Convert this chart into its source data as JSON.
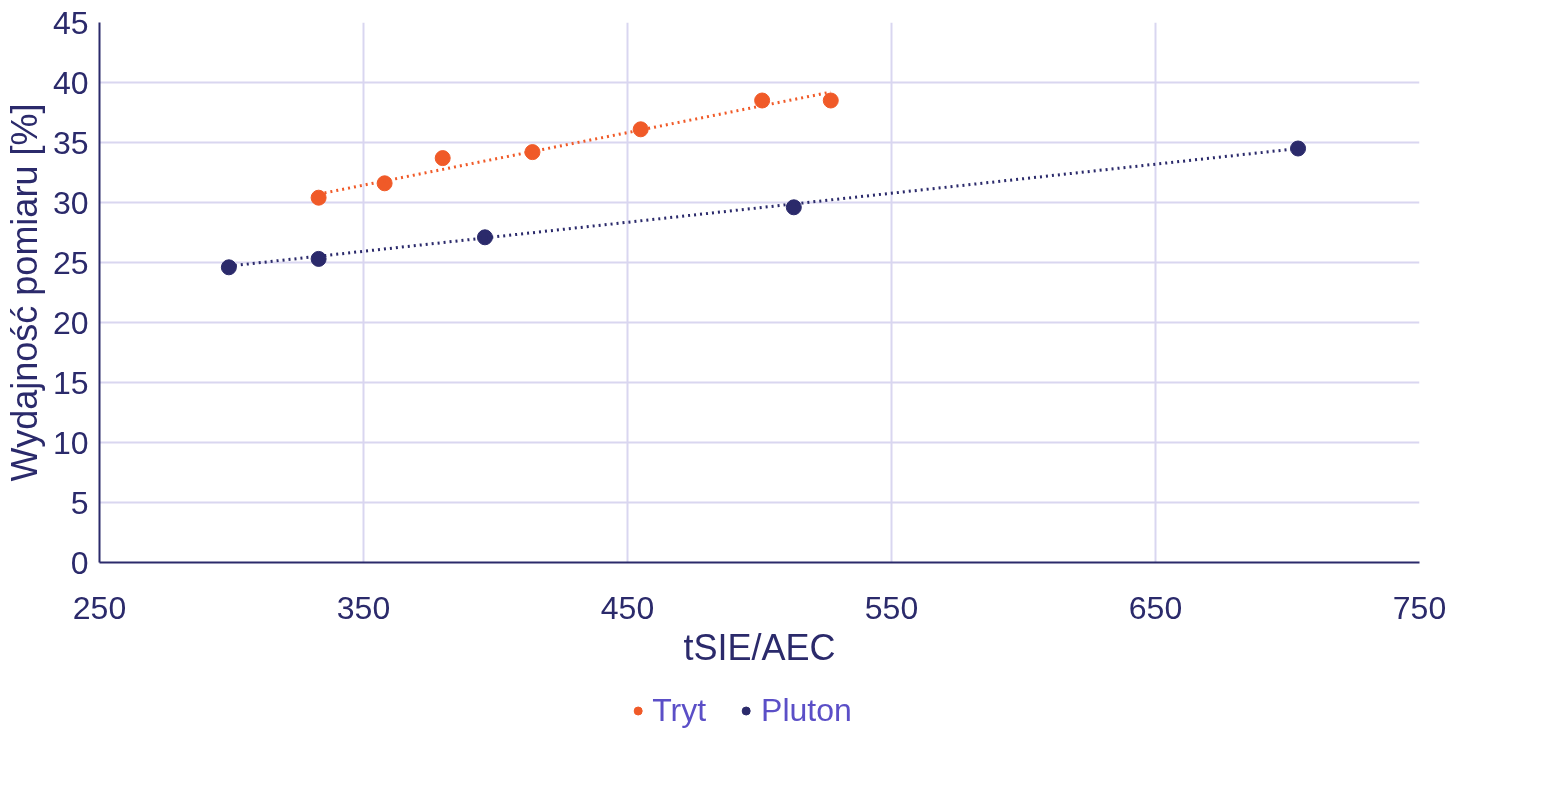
{
  "chart_data": {
    "type": "scatter",
    "xlabel": "tSIE/AEC",
    "ylabel": "Wydajność pomiaru [%]",
    "xlim": [
      250,
      750
    ],
    "xticks": [
      250,
      350,
      450,
      550,
      650,
      750
    ],
    "ylim": [
      0,
      45
    ],
    "yticks": [
      0,
      5,
      10,
      15,
      20,
      25,
      30,
      35,
      40,
      45
    ],
    "grid": true,
    "legend": "bottom",
    "marker": "circle",
    "series": [
      {
        "name": "Tryt",
        "color": "#f05a28",
        "x": [
          333,
          358,
          380,
          414,
          455,
          501,
          527
        ],
        "values": [
          30.4,
          31.6,
          33.7,
          34.2,
          36.1,
          38.5,
          38.5
        ]
      },
      {
        "name": "Pluton",
        "color": "#2b2a6b",
        "x": [
          299,
          333,
          396,
          513,
          704
        ],
        "values": [
          24.6,
          25.3,
          27.1,
          29.6,
          34.5
        ]
      },
      {
        "type": "line",
        "marker": "none",
        "color": "#f05a28",
        "line_style": "dotted",
        "x": [
          333,
          527
        ],
        "values": [
          30.7,
          39.2
        ]
      },
      {
        "type": "line",
        "marker": "none",
        "color": "#2b2a6b",
        "line_style": "dotted",
        "x": [
          299,
          704
        ],
        "values": [
          24.7,
          34.5
        ]
      }
    ]
  }
}
